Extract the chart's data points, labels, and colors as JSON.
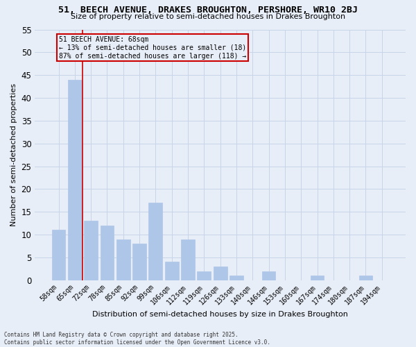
{
  "title": "51, BEECH AVENUE, DRAKES BROUGHTON, PERSHORE, WR10 2BJ",
  "subtitle": "Size of property relative to semi-detached houses in Drakes Broughton",
  "xlabel": "Distribution of semi-detached houses by size in Drakes Broughton",
  "ylabel": "Number of semi-detached properties",
  "footer_line1": "Contains HM Land Registry data © Crown copyright and database right 2025.",
  "footer_line2": "Contains public sector information licensed under the Open Government Licence v3.0.",
  "categories": [
    "58sqm",
    "65sqm",
    "72sqm",
    "78sqm",
    "85sqm",
    "92sqm",
    "99sqm",
    "106sqm",
    "112sqm",
    "119sqm",
    "126sqm",
    "133sqm",
    "140sqm",
    "146sqm",
    "153sqm",
    "160sqm",
    "167sqm",
    "174sqm",
    "180sqm",
    "187sqm",
    "194sqm"
  ],
  "values": [
    11,
    44,
    13,
    12,
    9,
    8,
    17,
    4,
    9,
    2,
    3,
    1,
    0,
    2,
    0,
    0,
    1,
    0,
    0,
    1,
    0
  ],
  "bar_color": "#aec6e8",
  "bar_edge_color": "#aec6e8",
  "grid_color": "#c8d4e8",
  "bg_color": "#e8eef8",
  "vline_color": "#cc0000",
  "annotation_title": "51 BEECH AVENUE: 68sqm",
  "annotation_line1": "← 13% of semi-detached houses are smaller (18)",
  "annotation_line2": "87% of semi-detached houses are larger (118) →",
  "annotation_box_color": "#cc0000",
  "ylim": [
    0,
    55
  ],
  "yticks": [
    0,
    5,
    10,
    15,
    20,
    25,
    30,
    35,
    40,
    45,
    50,
    55
  ]
}
